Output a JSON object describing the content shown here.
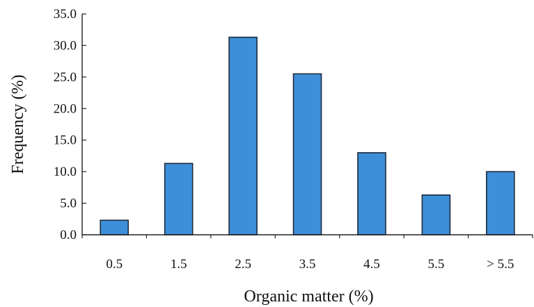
{
  "chart_data": {
    "type": "bar",
    "xlabel": "Organic matter (%)",
    "ylabel": "Frequency (%)",
    "categories": [
      "0.5",
      "1.5",
      "2.5",
      "3.5",
      "4.5",
      "5.5",
      "> 5.5"
    ],
    "values": [
      2.3,
      11.3,
      31.3,
      25.5,
      13.0,
      6.3,
      10.0
    ],
    "ylim": [
      0,
      35
    ],
    "yticks": [
      "0.0",
      "5.0",
      "10.0",
      "15.0",
      "20.0",
      "25.0",
      "30.0",
      "35.0"
    ],
    "grid": false,
    "legend": "none",
    "bar_color": "#3d8fd9"
  }
}
